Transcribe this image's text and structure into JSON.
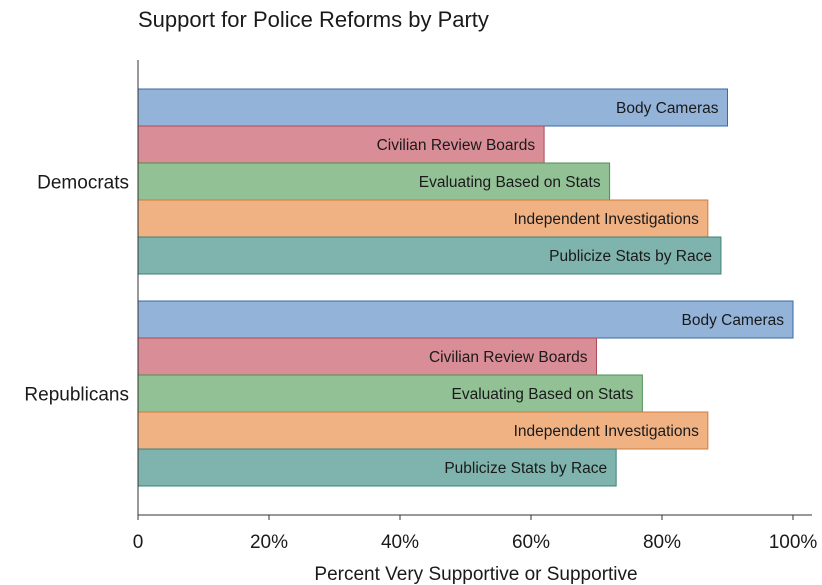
{
  "chart_data": {
    "type": "bar",
    "orientation": "horizontal",
    "title": "Support for Police Reforms by Party",
    "xlabel": "Percent Very Supportive or Supportive",
    "ylabel": "",
    "xlim": [
      0,
      100
    ],
    "x_ticks": [
      0,
      20,
      40,
      60,
      80,
      100
    ],
    "x_tick_labels": [
      "0",
      "20%",
      "40%",
      "60%",
      "80%",
      "100%"
    ],
    "grid": false,
    "legend": "none",
    "groups": [
      "Democrats",
      "Republicans"
    ],
    "series": [
      {
        "name": "Body Cameras",
        "color": "#93b3d9",
        "border": "#3a6aa8",
        "values": [
          90,
          100
        ]
      },
      {
        "name": "Civilian Review Boards",
        "color": "#d98d96",
        "border": "#b04a58",
        "values": [
          62,
          70
        ]
      },
      {
        "name": "Evaluating Based on Stats",
        "color": "#93c196",
        "border": "#4c8f52",
        "values": [
          72,
          77
        ]
      },
      {
        "name": "Independent Investigations",
        "color": "#f0b283",
        "border": "#d07b3c",
        "values": [
          87,
          87
        ]
      },
      {
        "name": "Publicize Stats by Race",
        "color": "#7fb4ae",
        "border": "#3d817a",
        "values": [
          89,
          73
        ]
      }
    ]
  }
}
